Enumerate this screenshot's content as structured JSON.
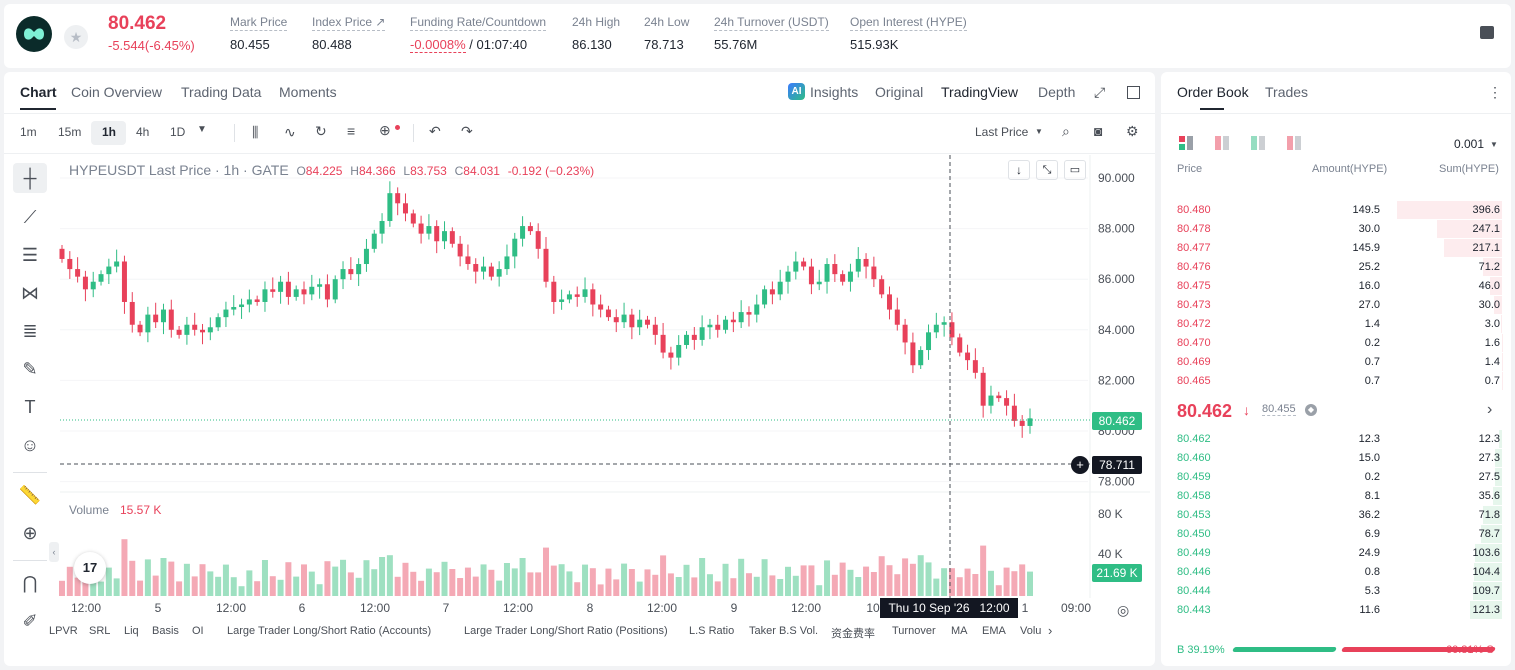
{
  "header": {
    "last_price": "80.462",
    "change": "-5.544(-6.45%)",
    "stats": [
      {
        "label": "Mark Price",
        "value": "80.455"
      },
      {
        "label": "Index Price ↗",
        "value": "80.488"
      },
      {
        "label": "Funding Rate/Countdown",
        "value_red": "-0.0008%",
        "value": "/ 01:07:40"
      },
      {
        "label": "24h High",
        "value": "86.130"
      },
      {
        "label": "24h Low",
        "value": "78.713"
      },
      {
        "label": "24h Turnover (USDT)",
        "value": "55.76M"
      },
      {
        "label": "Open Interest (HYPE)",
        "value": "515.93K"
      }
    ]
  },
  "chart_tabs": [
    "Chart",
    "Coin Overview",
    "Trading Data",
    "Moments"
  ],
  "view_tabs": {
    "insights": "Insights",
    "original": "Original",
    "tradingview": "TradingView",
    "depth": "Depth"
  },
  "intervals": [
    "1m",
    "15m",
    "1h",
    "4h",
    "1D"
  ],
  "price_type": "Last Price",
  "legend": {
    "symbol": "HYPEUSDT Last Price · 1h · GATE",
    "o": "O",
    "ov": "84.225",
    "h": "H",
    "hv": "84.366",
    "l": "L",
    "lv": "83.753",
    "c": "C",
    "cv": "84.031",
    "chg": "-0.192 (−0.23%)"
  },
  "volume_legend": {
    "label": "Volume",
    "value": "15.57 K"
  },
  "price_axis": [
    "90.000",
    "88.000",
    "86.000",
    "84.000",
    "82.000",
    "80.000",
    "78.000"
  ],
  "volume_axis": [
    "80 K",
    "40 K"
  ],
  "tags": {
    "last": "80.462",
    "cross": "78.711",
    "vol": "21.69 K"
  },
  "time_axis": [
    "12:00",
    "5",
    "12:00",
    "6",
    "12:00",
    "7",
    "12:00",
    "8",
    "12:00",
    "9",
    "12:00",
    "10",
    "1",
    "09:00"
  ],
  "crosshair_time": "Thu 10 Sep '26   12:00",
  "bottom_indicators": [
    "LPVR",
    "SRL",
    "Liq",
    "Basis",
    "OI",
    "Large Trader Long/Short Ratio (Accounts)",
    "Large Trader Long/Short Ratio (Positions)",
    "L.S Ratio",
    "Taker B.S Vol.",
    "资金费率",
    "Turnover",
    "MA",
    "EMA",
    "Volu"
  ],
  "orderbook": {
    "tabs": [
      "Order Book",
      "Trades"
    ],
    "precision": "0.001",
    "columns": [
      "Price",
      "Amount(HYPE)",
      "Sum(HYPE)"
    ],
    "asks": [
      [
        "80.480",
        "149.5",
        "396.6"
      ],
      [
        "80.478",
        "30.0",
        "247.1"
      ],
      [
        "80.477",
        "145.9",
        "217.1"
      ],
      [
        "80.476",
        "25.2",
        "71.2"
      ],
      [
        "80.475",
        "16.0",
        "46.0"
      ],
      [
        "80.473",
        "27.0",
        "30.0"
      ],
      [
        "80.472",
        "1.4",
        "3.0"
      ],
      [
        "80.470",
        "0.2",
        "1.6"
      ],
      [
        "80.469",
        "0.7",
        "1.4"
      ],
      [
        "80.465",
        "0.7",
        "0.7"
      ]
    ],
    "mid_price": "80.462",
    "mid_arrow": "🡇",
    "mark": "80.455",
    "bids": [
      [
        "80.462",
        "12.3",
        "12.3"
      ],
      [
        "80.460",
        "15.0",
        "27.3"
      ],
      [
        "80.459",
        "0.2",
        "27.5"
      ],
      [
        "80.458",
        "8.1",
        "35.6"
      ],
      [
        "80.453",
        "36.2",
        "71.8"
      ],
      [
        "80.450",
        "6.9",
        "78.7"
      ],
      [
        "80.449",
        "24.9",
        "103.6"
      ],
      [
        "80.446",
        "0.8",
        "104.4"
      ],
      [
        "80.444",
        "5.3",
        "109.7"
      ],
      [
        "80.443",
        "11.6",
        "121.3"
      ]
    ],
    "buy_pct": "B 39.19%",
    "sell_pct": "60.81% S",
    "buy_ratio": 0.3919
  },
  "colors": {
    "up": "#2fbd85",
    "down": "#e8415a",
    "text": "#202630",
    "muted": "#7a8290"
  },
  "chart_data": {
    "type": "candlestick",
    "series_close": [
      86.8,
      86.4,
      86.1,
      85.6,
      85.9,
      86.2,
      86.5,
      86.7,
      85.1,
      84.2,
      83.9,
      84.6,
      84.3,
      84.8,
      84.0,
      83.8,
      84.2,
      84.0,
      83.9,
      84.1,
      84.5,
      84.8,
      84.9,
      85.0,
      85.2,
      85.1,
      85.6,
      85.5,
      85.9,
      85.3,
      85.6,
      85.4,
      85.7,
      85.8,
      85.2,
      86.0,
      86.4,
      86.2,
      86.6,
      87.2,
      87.8,
      88.3,
      89.4,
      89.0,
      88.6,
      88.2,
      87.8,
      88.1,
      87.5,
      87.9,
      87.4,
      86.9,
      86.6,
      86.3,
      86.5,
      86.1,
      86.4,
      86.9,
      87.6,
      88.1,
      87.9,
      87.2,
      85.9,
      85.1,
      85.2,
      85.4,
      85.3,
      85.6,
      85.0,
      84.8,
      84.5,
      84.3,
      84.6,
      84.1,
      84.4,
      84.2,
      83.8,
      83.1,
      82.9,
      83.4,
      83.8,
      83.6,
      84.1,
      84.2,
      84.0,
      84.4,
      84.3,
      84.7,
      84.6,
      85.0,
      85.6,
      85.4,
      85.9,
      86.3,
      86.7,
      86.5,
      85.8,
      85.9,
      86.6,
      86.2,
      85.9,
      86.3,
      86.8,
      86.5,
      86.0,
      85.4,
      84.8,
      84.2,
      83.5,
      82.6,
      83.2,
      83.9,
      84.2,
      84.3,
      83.7,
      83.1,
      82.8,
      82.3,
      81.0,
      81.4,
      81.3,
      81.0,
      80.4,
      80.2,
      80.5
    ]
  }
}
